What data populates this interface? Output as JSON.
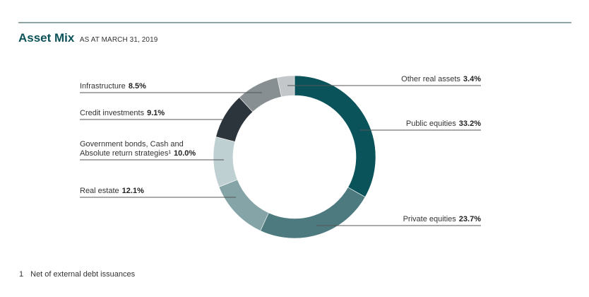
{
  "header": {
    "title": "Asset Mix",
    "subtitle": "AS AT MARCH 31, 2019"
  },
  "chart_data": {
    "type": "pie",
    "variant": "donut",
    "title": "Asset Mix",
    "subtitle": "AS AT MARCH 31, 2019",
    "unit": "%",
    "categories": [
      "Public equities",
      "Private equities",
      "Real estate",
      "Government bonds, Cash and Absolute return strategies¹",
      "Credit investments",
      "Infrastructure",
      "Other real assets"
    ],
    "values": [
      33.2,
      23.7,
      12.1,
      10.0,
      9.1,
      8.5,
      3.4
    ],
    "colors": [
      "#0b535b",
      "#4d7a7f",
      "#85a4a7",
      "#bfd0d2",
      "#2d353c",
      "#878f93",
      "#c3c7c9"
    ],
    "legend_position": "callout labels",
    "grid": false
  },
  "labels": {
    "public_equities": {
      "name": "Public equities",
      "value": "33.2%"
    },
    "private_equities": {
      "name": "Private equities",
      "value": "23.7%"
    },
    "real_estate": {
      "name": "Real estate",
      "value": "12.1%"
    },
    "gov_bonds": {
      "name_line1": "Government bonds, Cash and",
      "name_line2": "Absolute return strategies¹",
      "value": "10.0%"
    },
    "credit": {
      "name": "Credit investments",
      "value": "9.1%"
    },
    "infrastructure": {
      "name": "Infrastructure",
      "value": "8.5%"
    },
    "other_real": {
      "name": "Other real assets",
      "value": "3.4%"
    }
  },
  "footnote": {
    "number": "1",
    "text": "Net of external debt issuances"
  }
}
